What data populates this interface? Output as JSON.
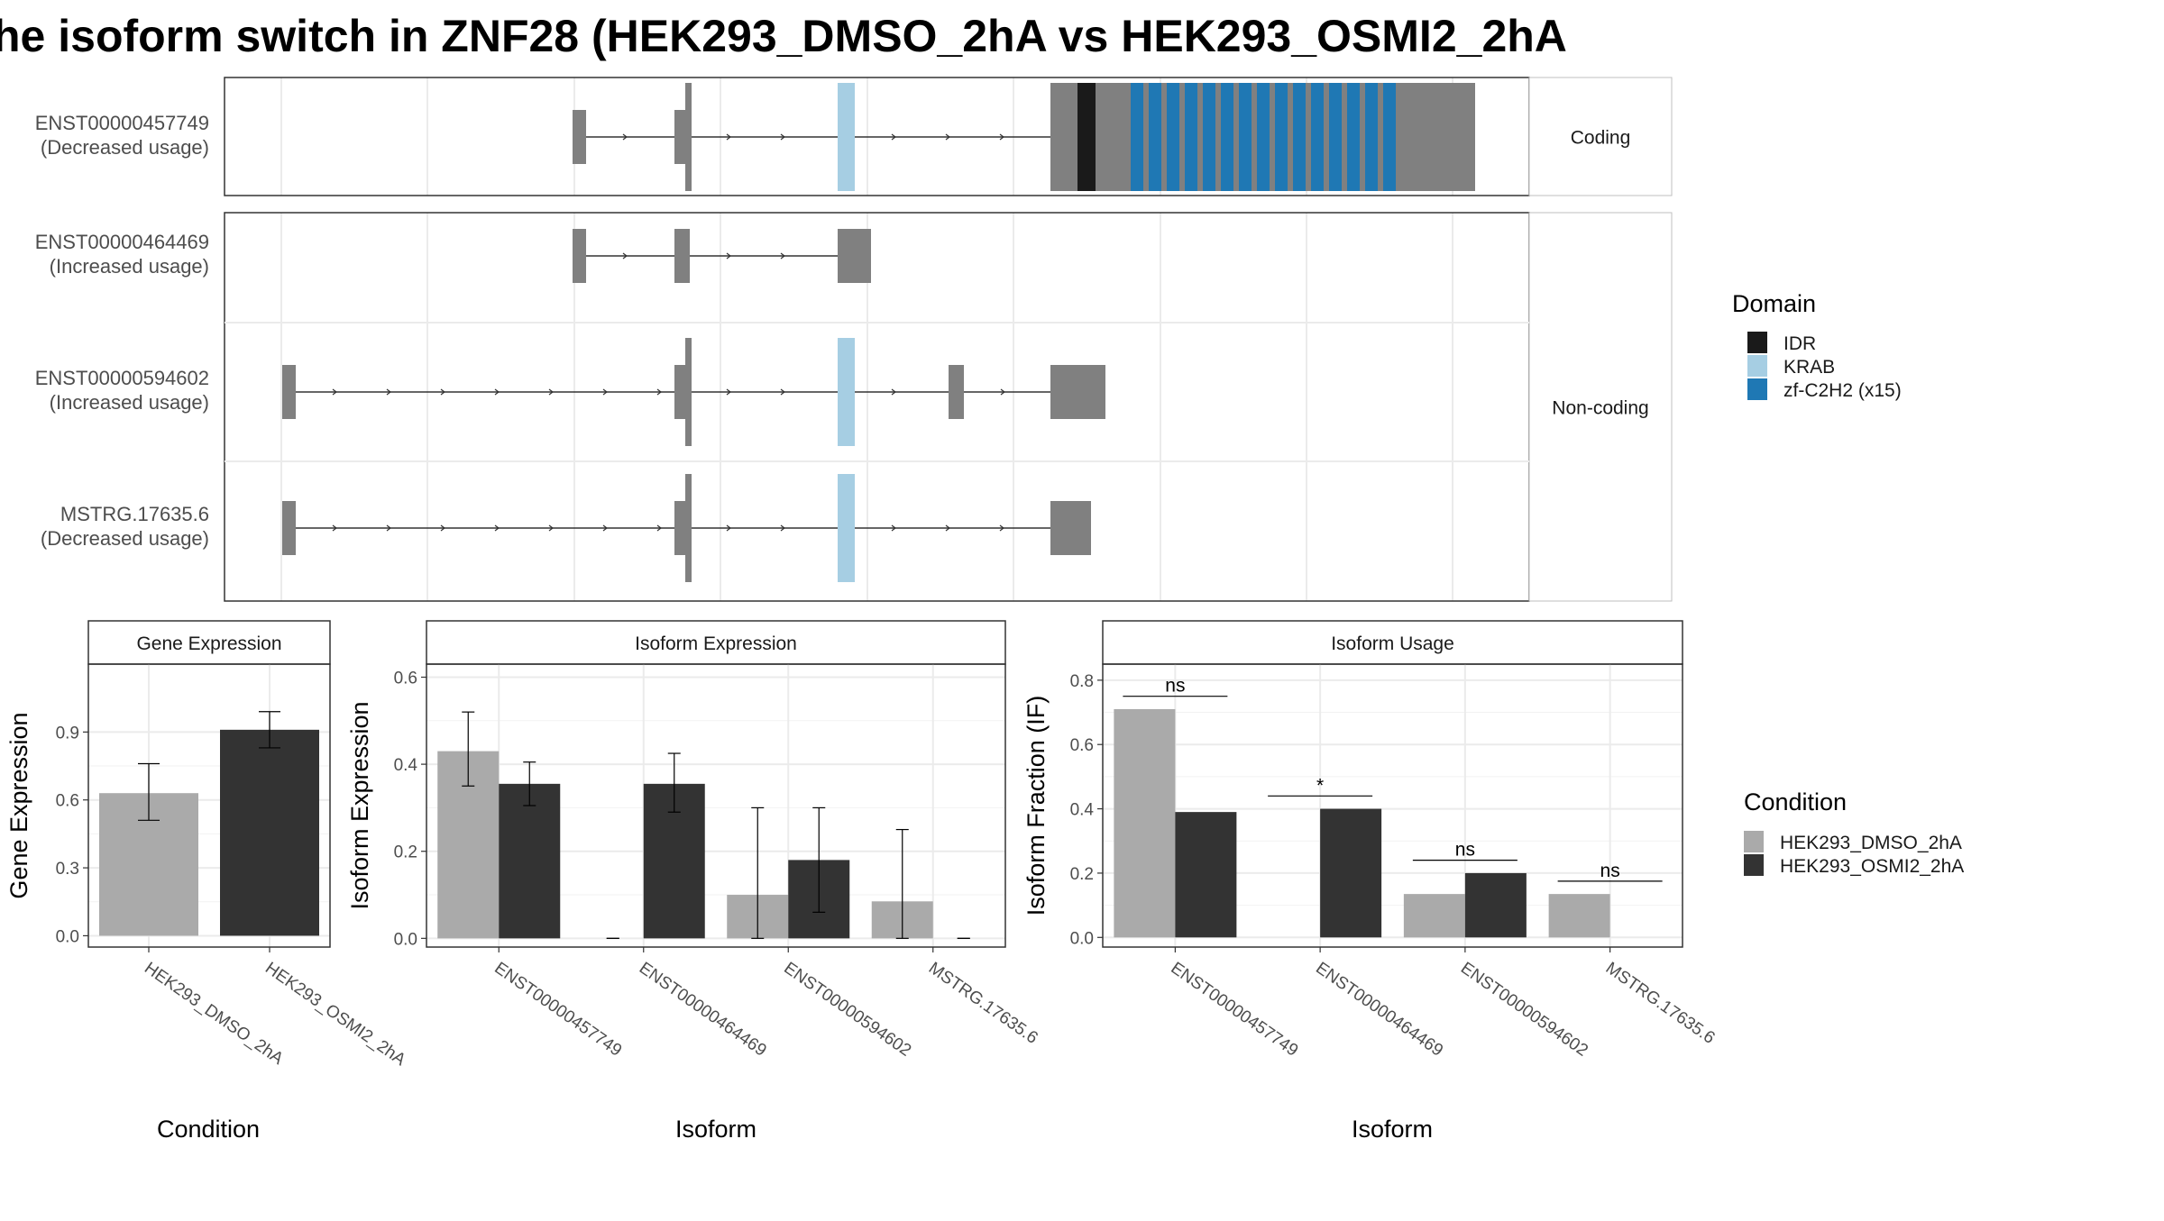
{
  "title": "he isoform switch in ZNF28 (HEK293_DMSO_2hA vs HEK293_OSMI2_2hA",
  "colors": {
    "exon": "#808080",
    "IDR": "#1a1a1a",
    "KRAB": "#a6cee3",
    "zf": "#1f78b4",
    "cond1": "#aaaaaa",
    "cond2": "#333333"
  },
  "isoform_structure": {
    "facets": [
      "Coding",
      "Non-coding"
    ],
    "transcripts": [
      {
        "id": "ENST00000457749",
        "usage": "(Decreased usage)",
        "facet": "Coding"
      },
      {
        "id": "ENST00000464469",
        "usage": "(Increased usage)",
        "facet": "Non-coding"
      },
      {
        "id": "ENST00000594602",
        "usage": "(Increased usage)",
        "facet": "Non-coding"
      },
      {
        "id": "MSTRG.17635.6",
        "usage": "(Decreased usage)",
        "facet": "Non-coding"
      }
    ],
    "domain_legend": {
      "title": "Domain",
      "items": [
        "IDR",
        "KRAB",
        "zf-C2H2 (x15)"
      ]
    }
  },
  "condition_legend": {
    "title": "Condition",
    "items": [
      "HEK293_DMSO_2hA",
      "HEK293_OSMI2_2hA"
    ]
  },
  "chart_data": [
    {
      "type": "bar",
      "title": "Gene Expression",
      "xlabel": "Condition",
      "ylabel": "Gene Expression",
      "categories": [
        "HEK293_DMSO_2hA",
        "HEK293_OSMI2_2hA"
      ],
      "values": [
        0.63,
        0.91
      ],
      "err_low": [
        0.51,
        0.83
      ],
      "err_high": [
        0.76,
        0.99
      ],
      "ylim": [
        -0.05,
        1.2
      ],
      "yticks": [
        0.0,
        0.3,
        0.6,
        0.9
      ],
      "ytick_labels": [
        "0.0",
        "0.3",
        "0.6",
        "0.9"
      ]
    },
    {
      "type": "bar",
      "title": "Isoform Expression",
      "xlabel": "Isoform",
      "ylabel": "Isoform Expression",
      "categories": [
        "ENST00000457749",
        "ENST00000464469",
        "ENST00000594602",
        "MSTRG.17635.6"
      ],
      "series": [
        {
          "name": "HEK293_DMSO_2hA",
          "values": [
            0.43,
            0.0,
            0.1,
            0.085
          ],
          "err_low": [
            0.35,
            0.0,
            0.0,
            0.0
          ],
          "err_high": [
            0.52,
            0.0,
            0.3,
            0.25
          ]
        },
        {
          "name": "HEK293_OSMI2_2hA",
          "values": [
            0.355,
            0.355,
            0.18,
            0.0
          ],
          "err_low": [
            0.305,
            0.29,
            0.06,
            0.0
          ],
          "err_high": [
            0.405,
            0.425,
            0.3,
            0.0
          ]
        }
      ],
      "ylim": [
        -0.02,
        0.63
      ],
      "yticks": [
        0.0,
        0.2,
        0.4,
        0.6
      ],
      "ytick_labels": [
        "0.0",
        "0.2",
        "0.4",
        "0.6"
      ]
    },
    {
      "type": "bar",
      "title": "Isoform Usage",
      "xlabel": "Isoform",
      "ylabel": "Isoform Fraction (IF)",
      "categories": [
        "ENST00000457749",
        "ENST00000464469",
        "ENST00000594602",
        "MSTRG.17635.6"
      ],
      "series": [
        {
          "name": "HEK293_DMSO_2hA",
          "values": [
            0.71,
            0.0,
            0.135,
            0.135
          ]
        },
        {
          "name": "HEK293_OSMI2_2hA",
          "values": [
            0.39,
            0.4,
            0.2,
            0.0
          ]
        }
      ],
      "significance": [
        "ns",
        "*",
        "ns",
        "ns"
      ],
      "ylim": [
        -0.03,
        0.85
      ],
      "yticks": [
        0.0,
        0.2,
        0.4,
        0.6,
        0.8
      ],
      "ytick_labels": [
        "0.0",
        "0.2",
        "0.4",
        "0.6",
        "0.8"
      ]
    }
  ]
}
